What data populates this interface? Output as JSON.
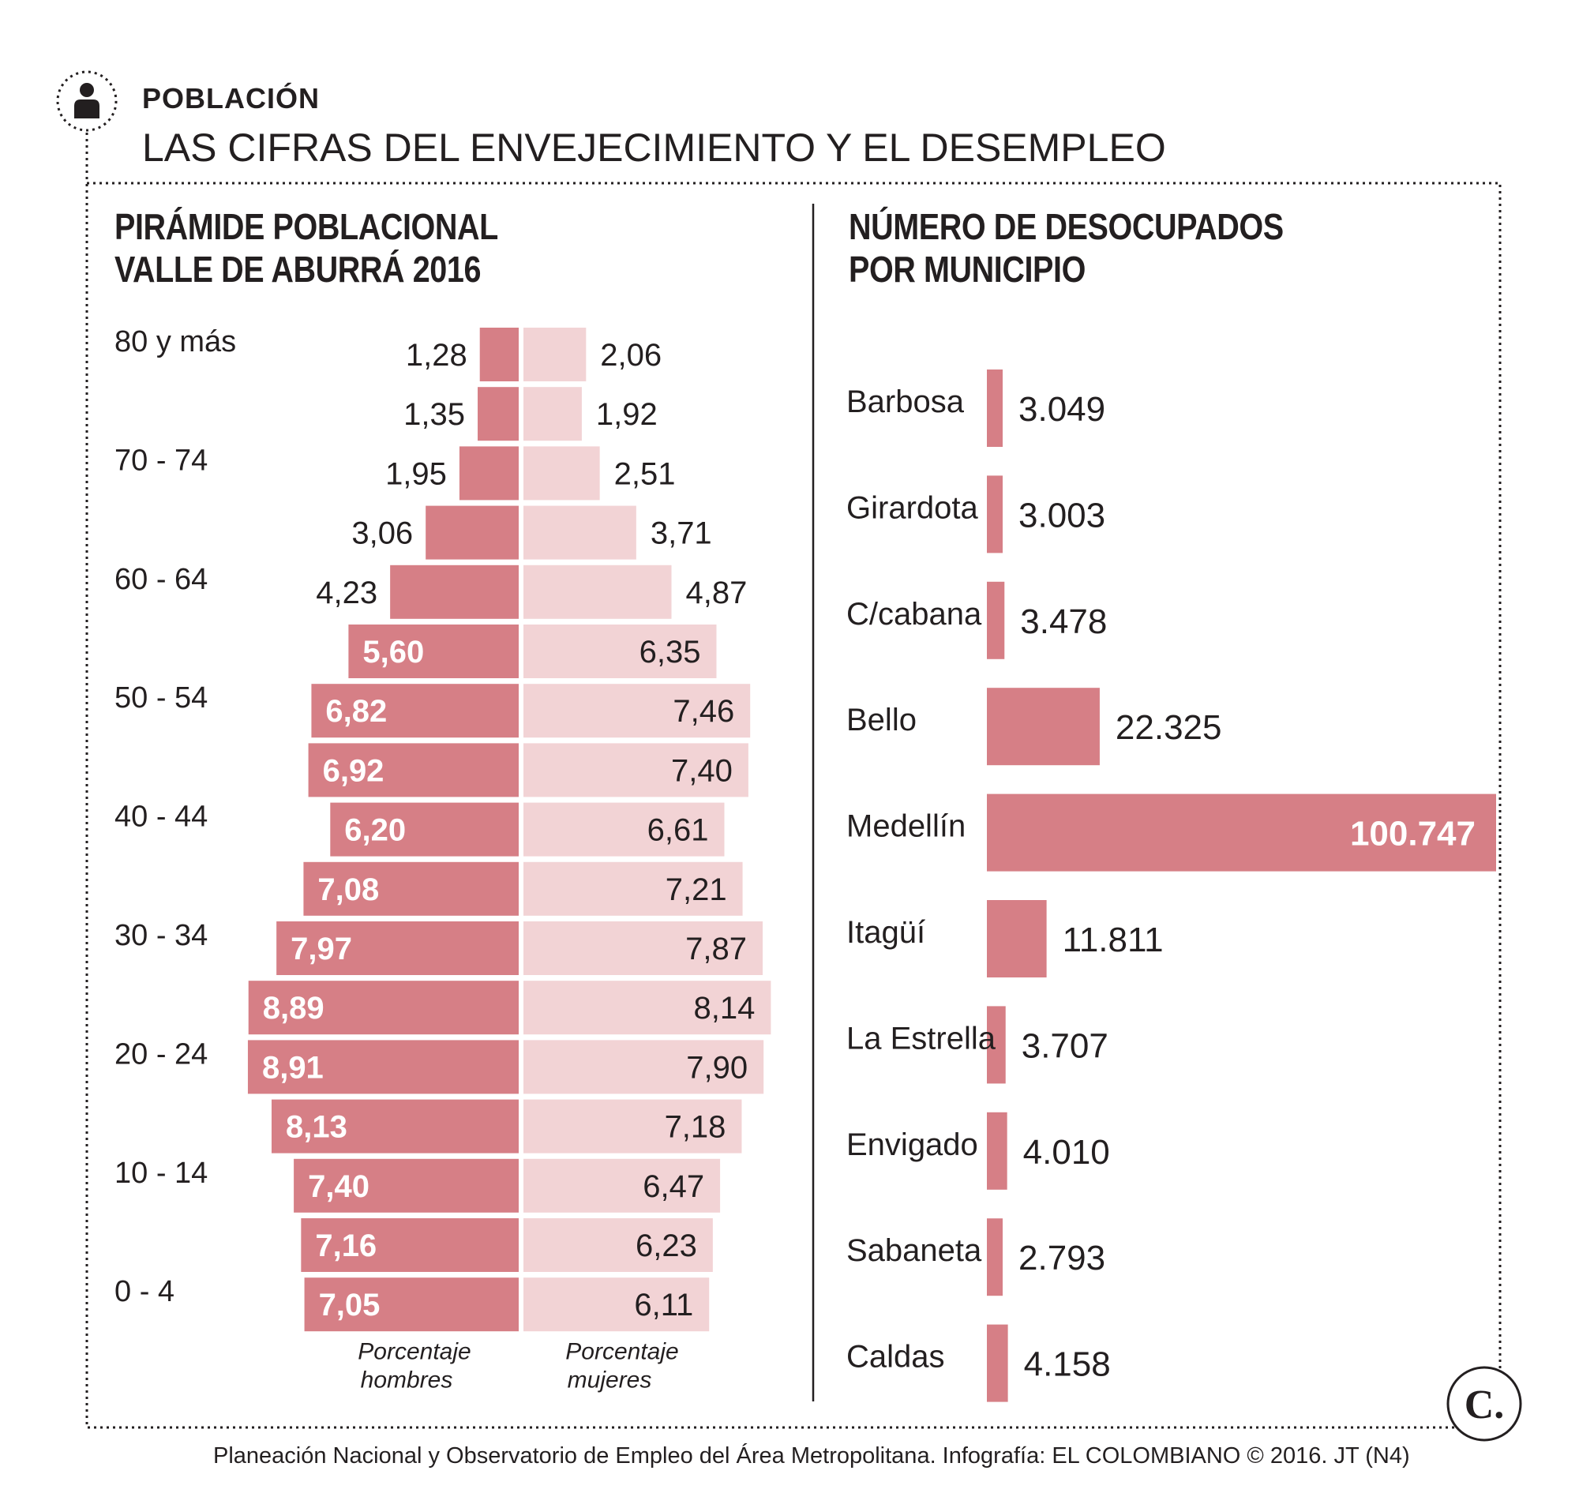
{
  "header": {
    "section_label": "POBLACIÓN",
    "title": "LAS CIFRAS DEL ENVEJECIMIENTO Y EL DESEMPLEO",
    "icon": "person-icon"
  },
  "colors": {
    "men": "#d67f86",
    "women": "#f2d3d5",
    "text": "#231f20",
    "divider": "#231f20"
  },
  "chart_data": [
    {
      "type": "bar",
      "orientation": "horizontal-pyramid",
      "title_lines": [
        "PIRÁMIDE POBLACIONAL",
        "VALLE DE ABURRÁ 2016"
      ],
      "age_labels": [
        "80 y más",
        "70 - 74",
        "60 - 64",
        "50 - 54",
        "40 - 44",
        "30 - 34",
        "20 - 24",
        "10 - 14",
        "0 - 4"
      ],
      "series": [
        {
          "name_lines": [
            "Porcentaje",
            "hombres"
          ],
          "values": [
            1.28,
            1.35,
            1.95,
            3.06,
            4.23,
            5.6,
            6.82,
            6.92,
            6.2,
            7.08,
            7.97,
            8.89,
            8.91,
            8.13,
            7.4,
            7.16,
            7.05
          ],
          "labels": [
            "1,28",
            "1,35",
            "1,95",
            "3,06",
            "4,23",
            "5,60",
            "6,82",
            "6,92",
            "6,20",
            "7,08",
            "7,97",
            "8,89",
            "8,91",
            "8,13",
            "7,40",
            "7,16",
            "7,05"
          ]
        },
        {
          "name_lines": [
            "Porcentaje",
            "mujeres"
          ],
          "values": [
            2.06,
            1.92,
            2.51,
            3.71,
            4.87,
            6.35,
            7.46,
            7.4,
            6.61,
            7.21,
            7.87,
            8.14,
            7.9,
            7.18,
            6.47,
            6.23,
            6.11
          ],
          "labels": [
            "2,06",
            "1,92",
            "2,51",
            "3,71",
            "4,87",
            "6,35",
            "7,46",
            "7,40",
            "6,61",
            "7,21",
            "7,87",
            "8,14",
            "7,90",
            "7,18",
            "6,47",
            "6,23",
            "6,11"
          ]
        }
      ]
    },
    {
      "type": "bar",
      "orientation": "horizontal",
      "title_lines": [
        "NÚMERO DE DESOCUPADOS",
        "POR MUNICIPIO"
      ],
      "categories": [
        "Barbosa",
        "Girardota",
        "C/cabana",
        "Bello",
        "Medellín",
        "Itagüí",
        "La Estrella",
        "Envigado",
        "Sabaneta",
        "Caldas"
      ],
      "values": [
        3049,
        3003,
        3478,
        22325,
        100747,
        11811,
        3707,
        4010,
        2793,
        4158
      ],
      "labels": [
        "3.049",
        "3.003",
        "3.478",
        "22.325",
        "100.747",
        "11.811",
        "3.707",
        "4.010",
        "2.793",
        "4.158"
      ]
    }
  ],
  "footer": {
    "source": "Planeación Nacional y Observatorio de Empleo del Área Metropolitana. Infografía: EL COLOMBIANO © 2016. JT (N4)",
    "logo_letter": "C."
  }
}
